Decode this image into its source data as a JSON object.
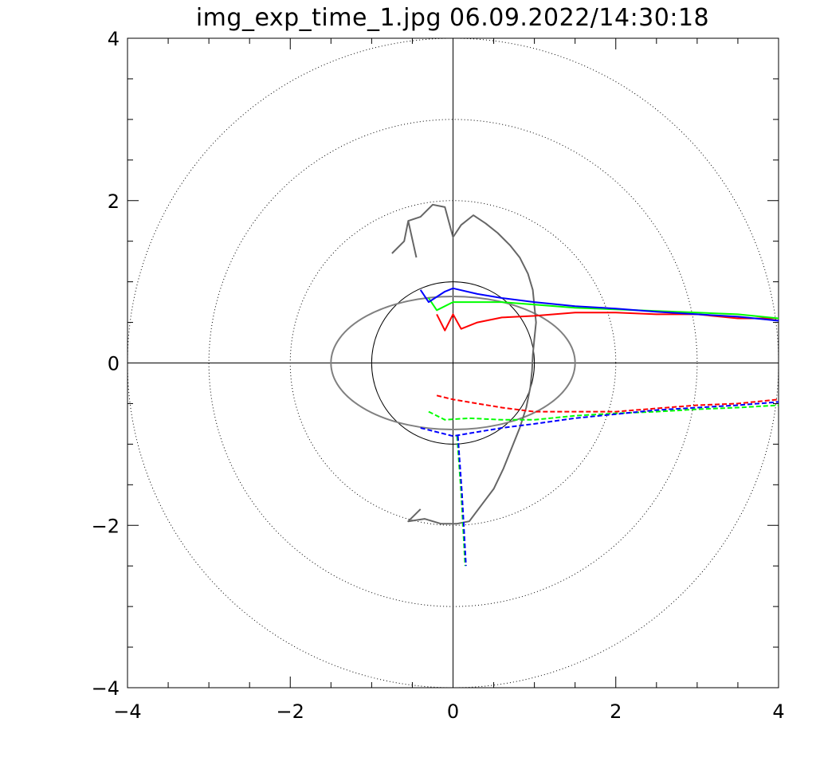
{
  "chart_data": {
    "type": "line",
    "title": "img_exp_time_1.jpg  06.09.2022/14:30:18",
    "xlabel": "",
    "ylabel": "",
    "xlim": [
      -4,
      4
    ],
    "ylim": [
      -4,
      4
    ],
    "x_ticks": [
      -4,
      -2,
      0,
      2,
      4
    ],
    "y_ticks": [
      -4,
      -2,
      0,
      2,
      4
    ],
    "x_tick_labels": [
      "−4",
      "−2",
      "0",
      "2",
      "4"
    ],
    "y_tick_labels": [
      "−4",
      "−2",
      "0",
      "2",
      "4"
    ],
    "grid_circle_radii": [
      1,
      2,
      3,
      4
    ],
    "colors": {
      "axes": "#000000",
      "grid": "#000000",
      "gray_trace": "#666666",
      "ellipse": "#808080",
      "red": "#ff0000",
      "green": "#00ff00",
      "blue": "#0000ff"
    },
    "reference_ellipse": {
      "cx": 0,
      "cy": 0,
      "rx": 1.5,
      "ry": 0.82
    },
    "series": [
      {
        "color_key": "gray_trace",
        "style": "solid",
        "points": [
          [
            -0.55,
            1.75
          ],
          [
            -0.4,
            1.8
          ],
          [
            -0.25,
            1.95
          ],
          [
            -0.1,
            1.92
          ],
          [
            0.0,
            1.55
          ],
          [
            0.1,
            1.7
          ],
          [
            0.25,
            1.82
          ],
          [
            0.4,
            1.72
          ],
          [
            0.55,
            1.6
          ],
          [
            0.7,
            1.45
          ],
          [
            0.82,
            1.3
          ],
          [
            0.92,
            1.1
          ],
          [
            0.98,
            0.9
          ],
          [
            1.0,
            0.7
          ],
          [
            1.02,
            0.5
          ],
          [
            1.0,
            0.3
          ],
          [
            0.98,
            0.1
          ],
          [
            0.97,
            -0.1
          ],
          [
            0.95,
            -0.3
          ],
          [
            0.9,
            -0.55
          ],
          [
            0.82,
            -0.8
          ],
          [
            0.72,
            -1.05
          ],
          [
            0.62,
            -1.3
          ],
          [
            0.5,
            -1.55
          ],
          [
            0.35,
            -1.75
          ],
          [
            0.2,
            -1.95
          ],
          [
            0.05,
            -1.98
          ],
          [
            -0.15,
            -1.98
          ],
          [
            -0.35,
            -1.92
          ],
          [
            -0.55,
            -1.95
          ],
          [
            -0.4,
            -1.8
          ]
        ]
      },
      {
        "color_key": "gray_trace",
        "style": "solid",
        "points": [
          [
            -0.75,
            1.35
          ],
          [
            -0.6,
            1.5
          ],
          [
            -0.55,
            1.75
          ],
          [
            -0.45,
            1.3
          ]
        ]
      },
      {
        "color_key": "red",
        "style": "solid",
        "points": [
          [
            -0.2,
            0.6
          ],
          [
            -0.1,
            0.4
          ],
          [
            0.0,
            0.6
          ],
          [
            0.1,
            0.42
          ],
          [
            0.3,
            0.5
          ],
          [
            0.6,
            0.56
          ],
          [
            1.0,
            0.58
          ],
          [
            1.5,
            0.62
          ],
          [
            2.0,
            0.62
          ],
          [
            2.5,
            0.6
          ],
          [
            3.0,
            0.6
          ],
          [
            3.5,
            0.55
          ],
          [
            4.0,
            0.55
          ]
        ]
      },
      {
        "color_key": "green",
        "style": "solid",
        "points": [
          [
            -0.3,
            0.8
          ],
          [
            -0.2,
            0.65
          ],
          [
            0.0,
            0.75
          ],
          [
            0.3,
            0.75
          ],
          [
            0.6,
            0.75
          ],
          [
            1.0,
            0.72
          ],
          [
            1.5,
            0.68
          ],
          [
            2.0,
            0.66
          ],
          [
            2.5,
            0.64
          ],
          [
            3.0,
            0.62
          ],
          [
            3.5,
            0.6
          ],
          [
            4.0,
            0.55
          ]
        ]
      },
      {
        "color_key": "blue",
        "style": "solid",
        "points": [
          [
            -0.4,
            0.9
          ],
          [
            -0.3,
            0.75
          ],
          [
            -0.1,
            0.88
          ],
          [
            0.0,
            0.92
          ],
          [
            0.3,
            0.85
          ],
          [
            0.6,
            0.8
          ],
          [
            1.0,
            0.75
          ],
          [
            1.5,
            0.7
          ],
          [
            2.0,
            0.67
          ],
          [
            2.5,
            0.63
          ],
          [
            3.0,
            0.6
          ],
          [
            3.5,
            0.57
          ],
          [
            4.0,
            0.52
          ]
        ]
      },
      {
        "color_key": "red",
        "style": "dashed",
        "points": [
          [
            -0.2,
            -0.4
          ],
          [
            0.0,
            -0.45
          ],
          [
            0.3,
            -0.5
          ],
          [
            0.6,
            -0.55
          ],
          [
            1.0,
            -0.6
          ],
          [
            1.5,
            -0.6
          ],
          [
            2.0,
            -0.6
          ],
          [
            2.5,
            -0.56
          ],
          [
            3.0,
            -0.52
          ],
          [
            3.5,
            -0.5
          ],
          [
            4.0,
            -0.45
          ]
        ]
      },
      {
        "color_key": "green",
        "style": "dashed",
        "points": [
          [
            -0.3,
            -0.6
          ],
          [
            -0.1,
            -0.7
          ],
          [
            0.2,
            -0.68
          ],
          [
            0.6,
            -0.7
          ],
          [
            1.0,
            -0.7
          ],
          [
            1.5,
            -0.65
          ],
          [
            2.0,
            -0.62
          ],
          [
            2.5,
            -0.6
          ],
          [
            3.0,
            -0.57
          ],
          [
            3.5,
            -0.55
          ],
          [
            4.0,
            -0.52
          ]
        ]
      },
      {
        "color_key": "blue",
        "style": "dashed",
        "points": [
          [
            -0.4,
            -0.8
          ],
          [
            -0.2,
            -0.85
          ],
          [
            0.0,
            -0.9
          ],
          [
            0.3,
            -0.85
          ],
          [
            0.6,
            -0.8
          ],
          [
            1.0,
            -0.75
          ],
          [
            1.5,
            -0.68
          ],
          [
            2.0,
            -0.63
          ],
          [
            2.5,
            -0.58
          ],
          [
            3.0,
            -0.55
          ],
          [
            3.5,
            -0.52
          ],
          [
            4.0,
            -0.48
          ]
        ]
      },
      {
        "color_key": "green",
        "style": "dashed",
        "points": [
          [
            0.05,
            -0.9
          ],
          [
            0.1,
            -1.6
          ],
          [
            0.15,
            -2.5
          ]
        ]
      },
      {
        "color_key": "blue",
        "style": "dashed",
        "points": [
          [
            0.06,
            -0.9
          ],
          [
            0.11,
            -1.6
          ],
          [
            0.16,
            -2.5
          ]
        ]
      }
    ]
  }
}
